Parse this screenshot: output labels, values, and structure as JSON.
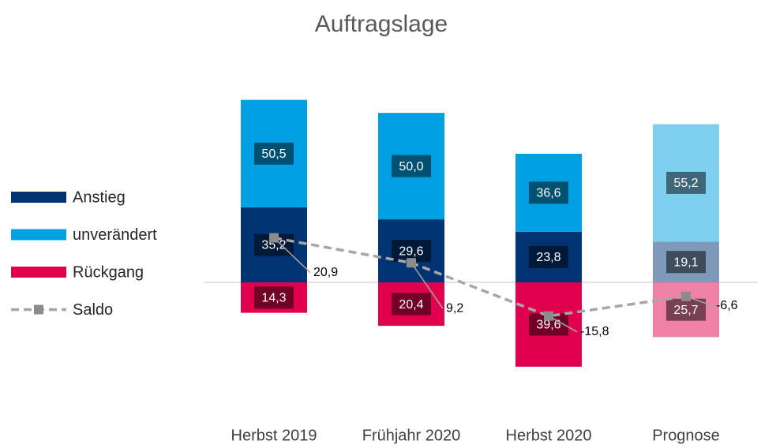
{
  "chart_data": {
    "type": "bar",
    "title": "Auftragslage",
    "categories": [
      "Herbst 2019",
      "Frühjahr 2020",
      "Herbst 2020",
      "Prognose"
    ],
    "series": [
      {
        "name": "Anstieg",
        "color": "#003372",
        "colors": [
          "#003372",
          "#003372",
          "#003372",
          "#7f99b9"
        ],
        "stack": "above",
        "values": [
          35.2,
          29.6,
          23.8,
          19.1
        ],
        "value_labels": [
          "35,2",
          "29,6",
          "23,8",
          "19,1"
        ]
      },
      {
        "name": "unverändert",
        "color": "#00a0e3",
        "colors": [
          "#00a0e3",
          "#00a0e3",
          "#00a0e3",
          "#7fcff1"
        ],
        "stack": "above",
        "values": [
          50.5,
          50.0,
          36.6,
          55.2
        ],
        "value_labels": [
          "50,5",
          "50,0",
          "36,6",
          "55,2"
        ]
      },
      {
        "name": "Rückgang",
        "color": "#e0004d",
        "colors": [
          "#e0004d",
          "#e0004d",
          "#e0004d",
          "#ef80a6"
        ],
        "stack": "below",
        "values": [
          14.3,
          20.4,
          39.6,
          25.7
        ],
        "value_labels": [
          "14,3",
          "20,4",
          "39,6",
          "25,7"
        ]
      },
      {
        "name": "Saldo",
        "type": "line",
        "color": "#a6a6a6",
        "colors": [
          "#a6a6a6",
          "#a6a6a6",
          "#a6a6a6",
          "#d0d0d0"
        ],
        "values": [
          20.9,
          9.2,
          -15.8,
          -6.6
        ],
        "value_labels": [
          "20,9",
          "9,2",
          "-15,8",
          "-6,6"
        ]
      }
    ]
  }
}
